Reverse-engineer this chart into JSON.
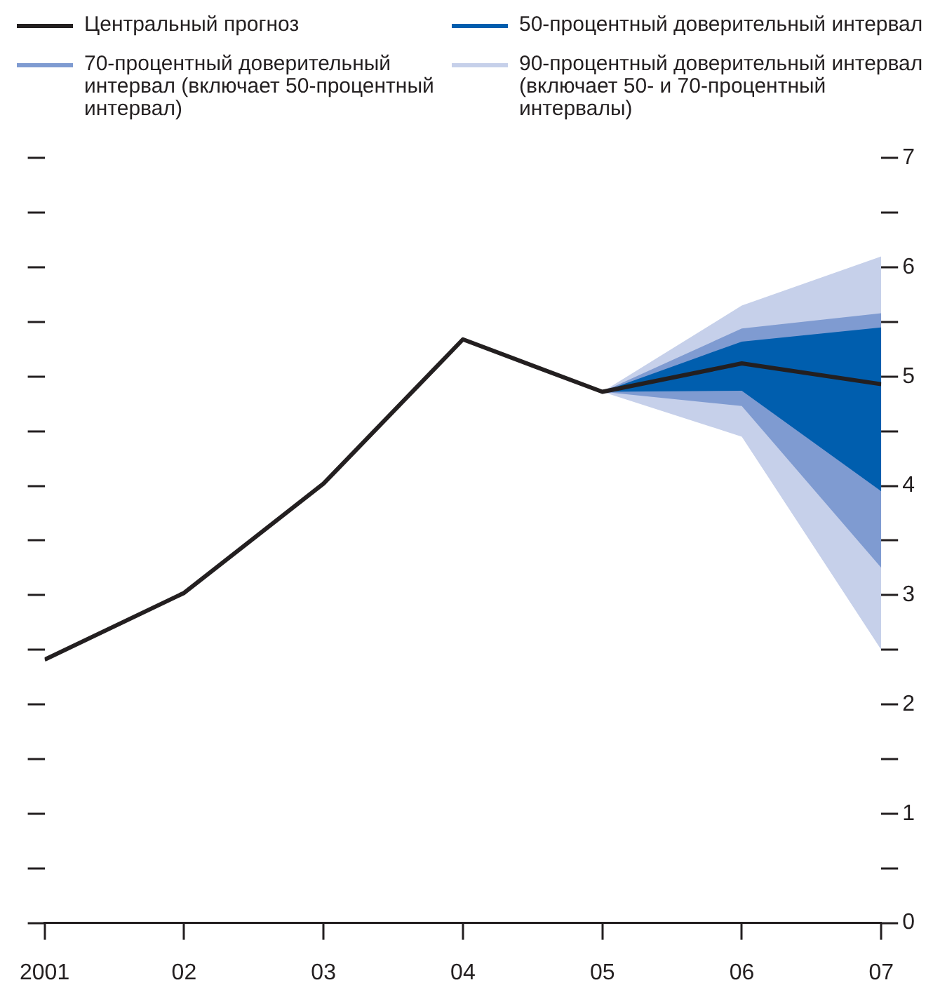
{
  "chart_data": {
    "type": "line",
    "legend": "top",
    "x": [
      2001,
      2002,
      2003,
      2004,
      2005,
      2006,
      2007
    ],
    "xlim": [
      2001,
      2007
    ],
    "xticks": [
      2001,
      {
        "value": 2002,
        "label": "02"
      },
      {
        "value": 2003,
        "label": "03"
      },
      {
        "value": 2004,
        "label": "04"
      },
      {
        "value": 2005,
        "label": "05"
      },
      {
        "value": 2006,
        "label": "06"
      },
      {
        "value": 2007,
        "label": "07"
      }
    ],
    "ylim": [
      0,
      7
    ],
    "yticks": [
      0,
      {
        "value": 0.5,
        "label": null
      },
      1,
      {
        "value": 1.5,
        "label": null
      },
      2,
      {
        "value": 2.5,
        "label": null
      },
      3,
      {
        "value": 3.5,
        "label": null
      },
      4,
      {
        "value": 4.5,
        "label": null
      },
      5,
      {
        "value": 5.5,
        "label": null
      },
      6,
      {
        "value": 6.5,
        "label": null
      },
      7
    ],
    "series": [
      {
        "name": "Центральный прогноз",
        "type": "line",
        "color": "#231f20",
        "values": [
          2.41,
          3.02,
          4.02,
          5.34,
          4.86,
          5.12,
          4.93
        ]
      },
      {
        "name": "50-процентный доверительный интервал",
        "type": "line",
        "color": "#005eae",
        "x": [
          2005,
          2006,
          2007
        ],
        "values": [
          null,
          null,
          null
        ],
        "lower": [
          4.86,
          4.87,
          3.95
        ],
        "upper": [
          4.86,
          5.32,
          5.45
        ]
      },
      {
        "name": "70-процентный доверительный интервал (включает 50-процентный интервал)",
        "type": "line",
        "color": "#7f9bd1",
        "x": [
          2005,
          2006,
          2007
        ],
        "values": [
          null,
          null,
          null
        ],
        "lower": [
          4.86,
          4.73,
          3.25
        ],
        "upper": [
          4.86,
          5.44,
          5.58
        ]
      },
      {
        "name": "90-процентный доверительный интервал (включает 50- и 70-процентный интервалы)",
        "type": "line",
        "color": "#c6d0ea",
        "x": [
          2005,
          2006,
          2007
        ],
        "values": [
          null,
          null,
          null
        ],
        "lower": [
          4.86,
          4.45,
          2.5
        ],
        "upper": [
          4.86,
          5.65,
          6.1
        ]
      }
    ]
  }
}
